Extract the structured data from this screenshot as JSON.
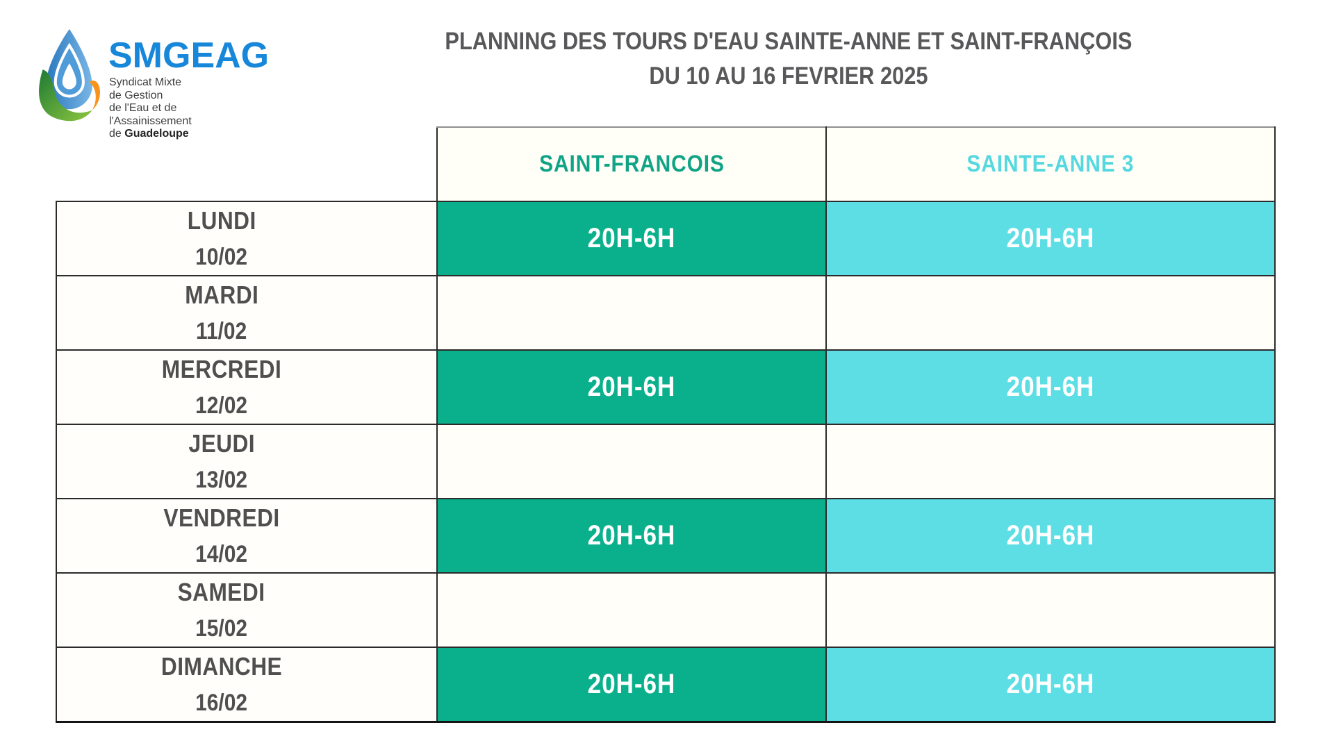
{
  "logo": {
    "mark": "water-drop-leaf-logo",
    "brand": "SMGEAG",
    "subtitle_line1": "Syndicat Mixte de Gestion",
    "subtitle_line2": "de l'Eau et de l'Assainissement",
    "subtitle_line3_prefix": "de ",
    "subtitle_line3_bold": "Guadeloupe"
  },
  "title": {
    "line1": "PLANNING DES TOURS D'EAU SAINTE-ANNE ET SAINT-FRANÇOIS",
    "line2": "DU  10 AU 16 FEVRIER 2025"
  },
  "table": {
    "columns": [
      {
        "id": "saint_francois",
        "label": "SAINT-FRANCOIS"
      },
      {
        "id": "sainte_anne",
        "label": "SAINTE-ANNE 3"
      }
    ],
    "rows": [
      {
        "day": "LUNDI",
        "date": "10/02",
        "saint_francois": "20H-6H",
        "sainte_anne": "20H-6H"
      },
      {
        "day": "MARDI",
        "date": "11/02",
        "saint_francois": "",
        "sainte_anne": ""
      },
      {
        "day": "MERCREDI",
        "date": "12/02",
        "saint_francois": "20H-6H",
        "sainte_anne": "20H-6H"
      },
      {
        "day": "JEUDI",
        "date": "13/02",
        "saint_francois": "",
        "sainte_anne": ""
      },
      {
        "day": "VENDREDI",
        "date": "14/02",
        "saint_francois": "20H-6H",
        "sainte_anne": "20H-6H"
      },
      {
        "day": "SAMEDI",
        "date": "15/02",
        "saint_francois": "",
        "sainte_anne": ""
      },
      {
        "day": "DIMANCHE",
        "date": "16/02",
        "saint_francois": "20H-6H",
        "sainte_anne": "20H-6H"
      }
    ]
  },
  "colors": {
    "green_cell": "#0AB08C",
    "cyan_cell": "#5CDEE4",
    "green_header_text": "#10A487",
    "cyan_header_text": "#55D8E0",
    "title_gray": "#58585A",
    "day_gray": "#4F4F4F",
    "brand_blue": "#1787DA",
    "border_dark": "#2B2B2B",
    "cell_cream": "#FFFEF7"
  }
}
